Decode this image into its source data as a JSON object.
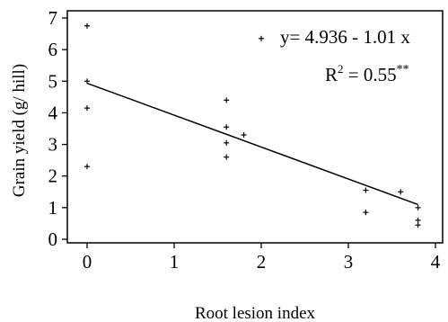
{
  "chart_data": {
    "type": "scatter",
    "xlabel": "Root lesion index",
    "ylabel": "Grain yield (g/ hill)",
    "xlim": [
      0,
      4
    ],
    "ylim": [
      0,
      7
    ],
    "xticks": [
      "0",
      "1",
      "2",
      "3",
      "4"
    ],
    "yticks": [
      "0",
      "1",
      "2",
      "3",
      "4",
      "5",
      "6",
      "7"
    ],
    "grid": false,
    "points": [
      {
        "x": 0,
        "y": 6.75
      },
      {
        "x": 0,
        "y": 5.0
      },
      {
        "x": 0,
        "y": 4.15
      },
      {
        "x": 0,
        "y": 2.3
      },
      {
        "x": 1.6,
        "y": 4.4
      },
      {
        "x": 1.6,
        "y": 3.55
      },
      {
        "x": 1.6,
        "y": 3.05
      },
      {
        "x": 1.6,
        "y": 2.6
      },
      {
        "x": 1.8,
        "y": 3.3
      },
      {
        "x": 2.0,
        "y": 6.35
      },
      {
        "x": 3.2,
        "y": 1.55
      },
      {
        "x": 3.2,
        "y": 0.85
      },
      {
        "x": 3.6,
        "y": 1.5
      },
      {
        "x": 3.8,
        "y": 1.0
      },
      {
        "x": 3.8,
        "y": 0.6
      },
      {
        "x": 3.8,
        "y": 0.45
      }
    ],
    "regression": {
      "intercept": 4.936,
      "slope": -1.01,
      "x_range": [
        0,
        3.8
      ]
    },
    "annotations": {
      "equation": "y= 4.936 - 1.01 x",
      "r2_label": "R",
      "r2_superscript": "2",
      "r2_value": " = 0.55",
      "significance": "**"
    }
  }
}
